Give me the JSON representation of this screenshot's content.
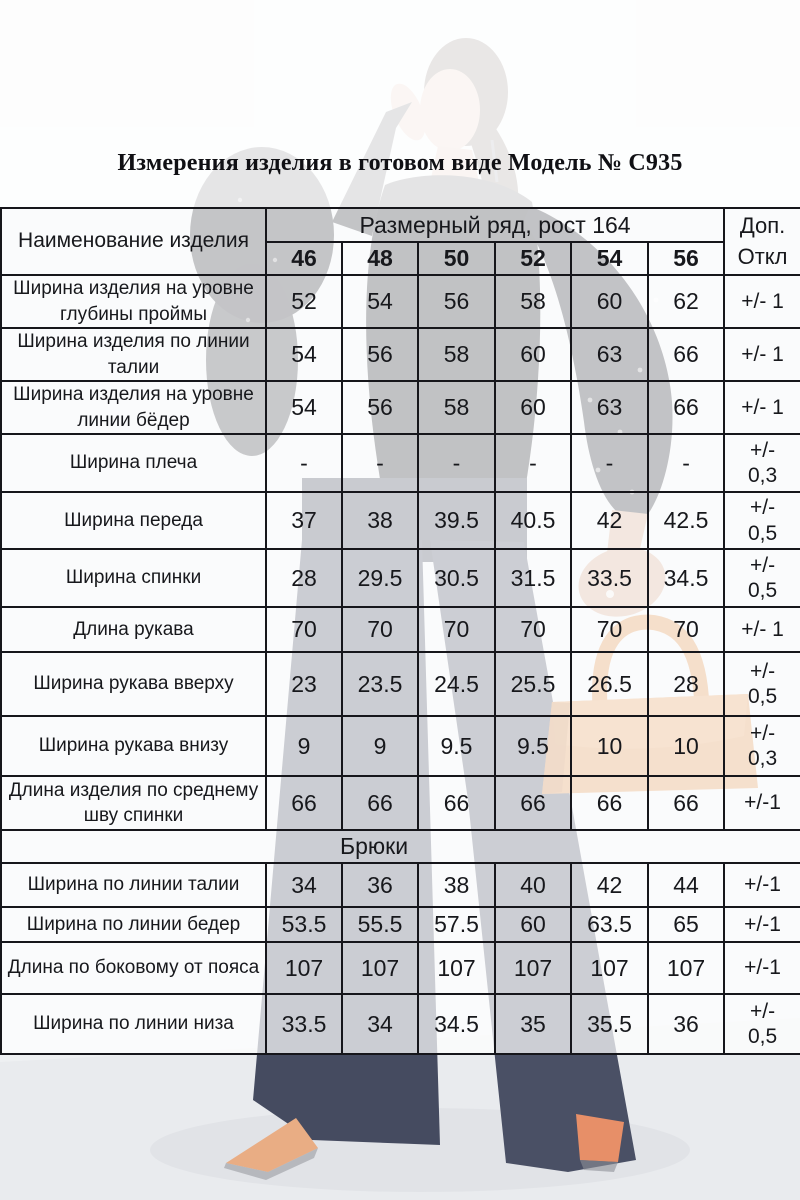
{
  "title": "Измерения изделия в готовом виде Модель № С935",
  "table": {
    "name_header": "Наименование изделия",
    "size_group_header": "Размерный ряд, рост 164",
    "sizes": [
      "46",
      "48",
      "50",
      "52",
      "54",
      "56"
    ],
    "tolerance_header": "Доп.\nОткл",
    "rows": [
      {
        "label": "Ширина изделия на уровне глубины проймы",
        "values": [
          "52",
          "54",
          "56",
          "58",
          "60",
          "62"
        ],
        "tol": "+/- 1"
      },
      {
        "label": "Ширина изделия по линии талии",
        "values": [
          "54",
          "56",
          "58",
          "60",
          "63",
          "66"
        ],
        "tol": "+/- 1"
      },
      {
        "label": "Ширина изделия на уровне линии бёдер",
        "values": [
          "54",
          "56",
          "58",
          "60",
          "63",
          "66"
        ],
        "tol": "+/- 1"
      },
      {
        "label": "Ширина плеча",
        "values": [
          "-",
          "-",
          "-",
          "-",
          "-",
          "-"
        ],
        "tol": "+/-\n0,3"
      },
      {
        "label": "Ширина переда",
        "values": [
          "37",
          "38",
          "39.5",
          "40.5",
          "42",
          "42.5"
        ],
        "tol": "+/-\n0,5"
      },
      {
        "label": "Ширина спинки",
        "values": [
          "28",
          "29.5",
          "30.5",
          "31.5",
          "33.5",
          "34.5"
        ],
        "tol": "+/-\n0,5"
      },
      {
        "label": "Длина рукава",
        "values": [
          "70",
          "70",
          "70",
          "70",
          "70",
          "70"
        ],
        "tol": "+/- 1"
      },
      {
        "label": "Ширина рукава вверху",
        "values": [
          "23",
          "23.5",
          "24.5",
          "25.5",
          "26.5",
          "28"
        ],
        "tol": "+/-\n0,5"
      },
      {
        "label": "Ширина рукава внизу",
        "values": [
          "9",
          "9",
          "9.5",
          "9.5",
          "10",
          "10"
        ],
        "tol": "+/-\n0,3"
      },
      {
        "label": "Длина изделия по среднему шву спинки",
        "values": [
          "66",
          "66",
          "66",
          "66",
          "66",
          "66"
        ],
        "tol": "+/-1"
      },
      {
        "section": "Брюки"
      },
      {
        "label": "Ширина по линии талии",
        "values": [
          "34",
          "36",
          "38",
          "40",
          "42",
          "44"
        ],
        "tol": "+/-1"
      },
      {
        "label": "Ширина по линии бедер",
        "values": [
          "53.5",
          "55.5",
          "57.5",
          "60",
          "63.5",
          "65"
        ],
        "tol": "+/-1"
      },
      {
        "label": "Длина по боковому от пояса",
        "values": [
          "107",
          "107",
          "107",
          "107",
          "107",
          "107"
        ],
        "tol": "+/-1"
      },
      {
        "label": "Ширина по линии низа",
        "values": [
          "33.5",
          "34",
          "34.5",
          "35",
          "35.5",
          "36"
        ],
        "tol": "+/-\n0,5"
      }
    ]
  },
  "photo": {
    "description": "Модель в тёмной кружевной блузе и широких тёмно-синих брюках с оранжевой мини-сумкой и оранжевых туфлях",
    "colors": {
      "blouse": "#23262e",
      "trousers": "#4a5065",
      "handbag": "#db8f4d",
      "shoes": "#e99a74",
      "skin": "#d8b49e",
      "hair": "#4a3a31",
      "backdrop": "#eef0f2"
    }
  }
}
